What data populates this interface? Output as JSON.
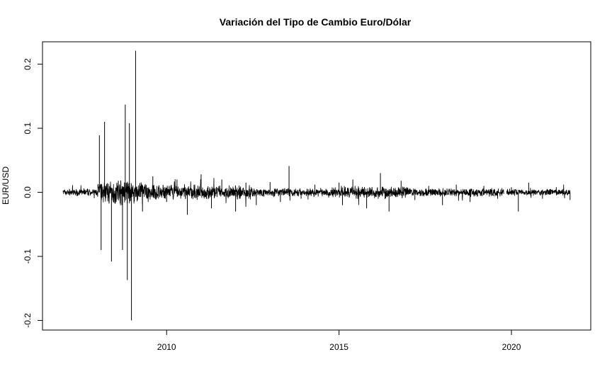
{
  "chart_data": {
    "type": "line",
    "title": "Variación del Tipo de Cambio Euro/Dólar",
    "xlabel": "",
    "ylabel": "EUR/USD",
    "xlim": [
      2006.4,
      2022.3
    ],
    "ylim": [
      -0.215,
      0.235
    ],
    "x_ticks": [
      2010,
      2015,
      2020
    ],
    "x_tick_labels": [
      "2010",
      "2015",
      "2020"
    ],
    "y_ticks": [
      -0.2,
      -0.1,
      0.0,
      0.1,
      0.2
    ],
    "y_tick_labels": [
      "-0.2",
      "-0.1",
      "0.0",
      "0.1",
      "0.2"
    ],
    "grid": false,
    "legend": "none",
    "line_color": "#000000",
    "series": [
      {
        "x": [
          2007.0,
          2007.3,
          2007.6,
          2007.9,
          2008.05,
          2008.1,
          2008.2,
          2008.4,
          2008.6,
          2008.72,
          2008.8,
          2008.86,
          2008.92,
          2008.98,
          2009.1,
          2009.3,
          2009.6,
          2010.0,
          2010.3,
          2010.6,
          2011.0,
          2011.3,
          2011.6,
          2012.0,
          2012.3,
          2012.6,
          2013.0,
          2013.3,
          2013.55,
          2013.9,
          2014.3,
          2014.7,
          2015.0,
          2015.1,
          2015.4,
          2015.8,
          2016.2,
          2016.45,
          2016.8,
          2017.2,
          2017.6,
          2018.0,
          2018.4,
          2018.8,
          2019.2,
          2019.6,
          2019.8,
          2019.85,
          2020.0,
          2020.2,
          2020.5,
          2020.9,
          2021.3,
          2021.7
        ],
        "y": [
          0.003,
          -0.004,
          0.006,
          -0.009,
          0.089,
          -0.09,
          0.11,
          -0.108,
          0.018,
          -0.09,
          0.137,
          -0.137,
          0.108,
          -0.2,
          0.221,
          -0.03,
          0.025,
          -0.015,
          0.02,
          -0.035,
          0.028,
          -0.025,
          0.02,
          -0.03,
          0.015,
          -0.02,
          0.016,
          -0.015,
          0.041,
          -0.01,
          0.012,
          -0.008,
          0.015,
          -0.02,
          0.02,
          -0.025,
          0.03,
          -0.03,
          0.018,
          -0.012,
          0.01,
          -0.02,
          0.012,
          -0.015,
          0.01,
          -0.01,
          0.0,
          0.0,
          0.008,
          -0.03,
          0.015,
          -0.01,
          0.008,
          -0.012
        ]
      }
    ]
  }
}
